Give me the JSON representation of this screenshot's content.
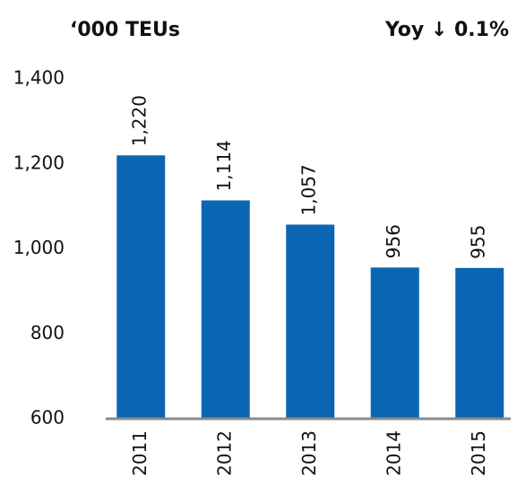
{
  "chart_data": {
    "type": "bar",
    "title": "‘000 TEUs",
    "annotation": "Yoy ↓ 0.1%",
    "categories": [
      "2011",
      "2012",
      "2013",
      "2014",
      "2015"
    ],
    "values": [
      1220,
      1114,
      1057,
      956,
      955
    ],
    "value_labels": [
      "1,220",
      "1,114",
      "1,057",
      "956",
      "955"
    ],
    "color": "#0a66b2",
    "ylim": [
      600,
      1400
    ],
    "yticks": [
      600,
      800,
      {
        "value": 1000,
        "label": "1,000"
      },
      {
        "value": 1200,
        "label": "1,200"
      },
      {
        "value": 1400,
        "label": "1,400"
      }
    ],
    "grid": false
  }
}
